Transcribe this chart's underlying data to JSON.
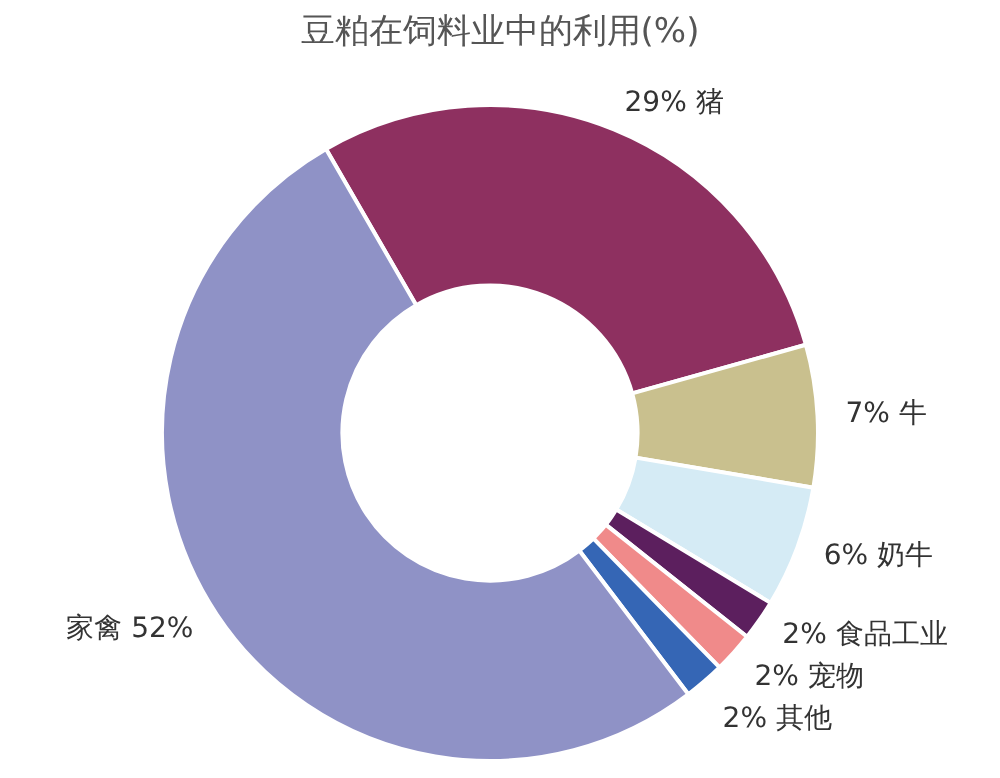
{
  "chart_data": {
    "type": "donut",
    "title": "豆粕在饲料业中的利用(%)",
    "categories": [
      "猪",
      "牛",
      "奶牛",
      "食品工业",
      "宠物",
      "其他",
      "家禽"
    ],
    "values": [
      29,
      7,
      6,
      2,
      2,
      2,
      52
    ],
    "value_labels": [
      "29%",
      "7%",
      "6%",
      "2%",
      "2%",
      "2%",
      "52%"
    ],
    "colors": [
      "#8e3060",
      "#c9c08e",
      "#d5ebf5",
      "#5c1f5e",
      "#f08a8a",
      "#3566b5",
      "#8f92c6"
    ],
    "legend": false
  }
}
